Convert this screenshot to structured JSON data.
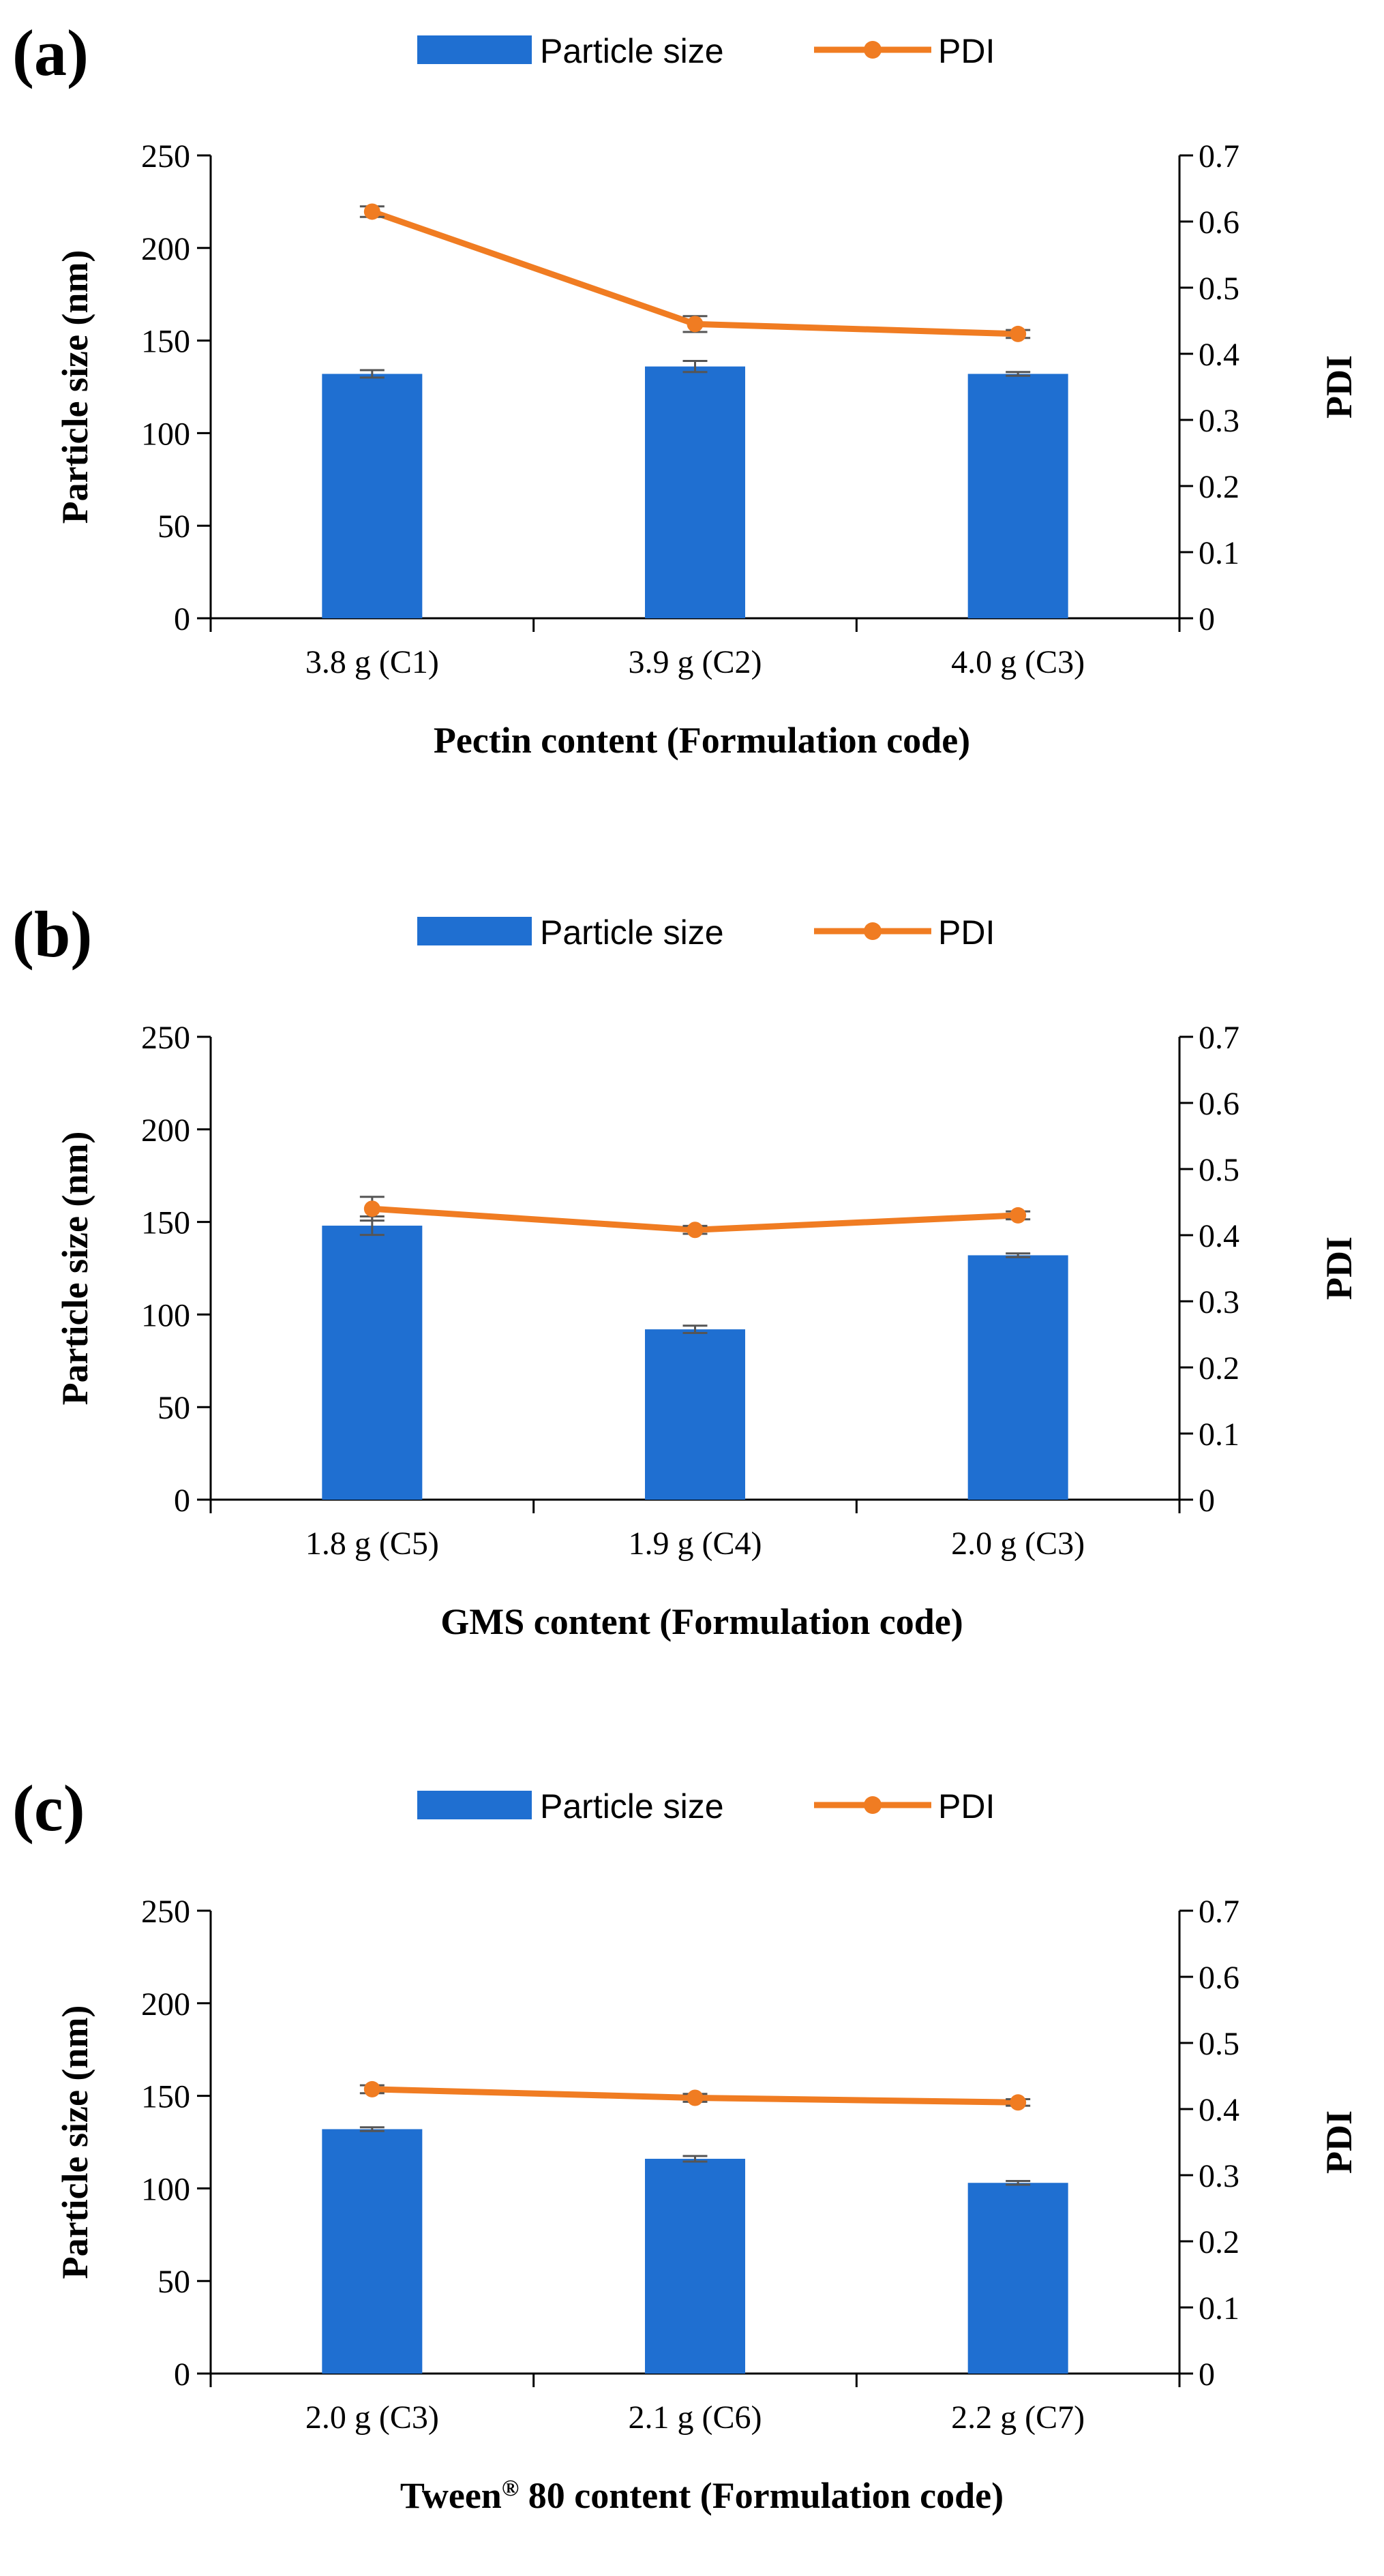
{
  "colors": {
    "bar": "#1f6fd1",
    "line": "#f07c22",
    "axis": "#000000",
    "errorbar": "#555555"
  },
  "chart_data": [
    {
      "panel_label": "(a)",
      "type": "bar+line",
      "categories": [
        "3.8 g (C1)",
        "3.9 g (C2)",
        "4.0 g (C3)"
      ],
      "series": [
        {
          "name": "Particle size",
          "kind": "bar",
          "axis": "left",
          "values": [
            132,
            136,
            132
          ],
          "errors": [
            2,
            3,
            1
          ]
        },
        {
          "name": "PDI",
          "kind": "line",
          "axis": "right",
          "values": [
            0.615,
            0.445,
            0.43
          ],
          "errors": [
            0.008,
            0.012,
            0.006
          ]
        }
      ],
      "xlabel": "Pectin content (Formulation code)",
      "xlabel_parts": [
        "Pectin content (Formulation code)"
      ],
      "ylabel": "Particle size (nm)",
      "y2label": "PDI",
      "ylim": [
        0,
        250
      ],
      "yticks": [
        "0",
        "50",
        "100",
        "150",
        "200",
        "250"
      ],
      "y2lim": [
        0,
        0.7
      ],
      "y2ticks": [
        "0",
        "0.1",
        "0.2",
        "0.3",
        "0.4",
        "0.5",
        "0.6",
        "0.7"
      ],
      "legend": [
        "Particle size",
        "PDI"
      ]
    },
    {
      "panel_label": "(b)",
      "type": "bar+line",
      "categories": [
        "1.8 g (C5)",
        "1.9 g (C4)",
        "2.0 g (C3)"
      ],
      "series": [
        {
          "name": "Particle size",
          "kind": "bar",
          "axis": "left",
          "values": [
            148,
            92,
            132
          ],
          "errors": [
            5,
            2,
            1
          ]
        },
        {
          "name": "PDI",
          "kind": "line",
          "axis": "right",
          "values": [
            0.44,
            0.408,
            0.43
          ],
          "errors": [
            0.018,
            0.006,
            0.006
          ]
        }
      ],
      "xlabel": "GMS content (Formulation code)",
      "xlabel_parts": [
        "GMS content (Formulation code)"
      ],
      "ylabel": "Particle size (nm)",
      "y2label": "PDI",
      "ylim": [
        0,
        250
      ],
      "yticks": [
        "0",
        "50",
        "100",
        "150",
        "200",
        "250"
      ],
      "y2lim": [
        0,
        0.7
      ],
      "y2ticks": [
        "0",
        "0.1",
        "0.2",
        "0.3",
        "0.4",
        "0.5",
        "0.6",
        "0.7"
      ],
      "legend": [
        "Particle size",
        "PDI"
      ]
    },
    {
      "panel_label": "(c)",
      "type": "bar+line",
      "categories": [
        "2.0 g (C3)",
        "2.1 g (C6)",
        "2.2 g (C7)"
      ],
      "series": [
        {
          "name": "Particle size",
          "kind": "bar",
          "axis": "left",
          "values": [
            132,
            116,
            103
          ],
          "errors": [
            1,
            1.5,
            1
          ]
        },
        {
          "name": "PDI",
          "kind": "line",
          "axis": "right",
          "values": [
            0.43,
            0.417,
            0.41
          ],
          "errors": [
            0.006,
            0.006,
            0.005
          ]
        }
      ],
      "xlabel": "Tween® 80 content (Formulation code)",
      "xlabel_parts": [
        "Tween",
        "®",
        " 80 content (Formulation code)"
      ],
      "ylabel": "Particle size (nm)",
      "y2label": "PDI",
      "ylim": [
        0,
        250
      ],
      "yticks": [
        "0",
        "50",
        "100",
        "150",
        "200",
        "250"
      ],
      "y2lim": [
        0,
        0.7
      ],
      "y2ticks": [
        "0",
        "0.1",
        "0.2",
        "0.3",
        "0.4",
        "0.5",
        "0.6",
        "0.7"
      ],
      "legend": [
        "Particle size",
        "PDI"
      ]
    }
  ]
}
